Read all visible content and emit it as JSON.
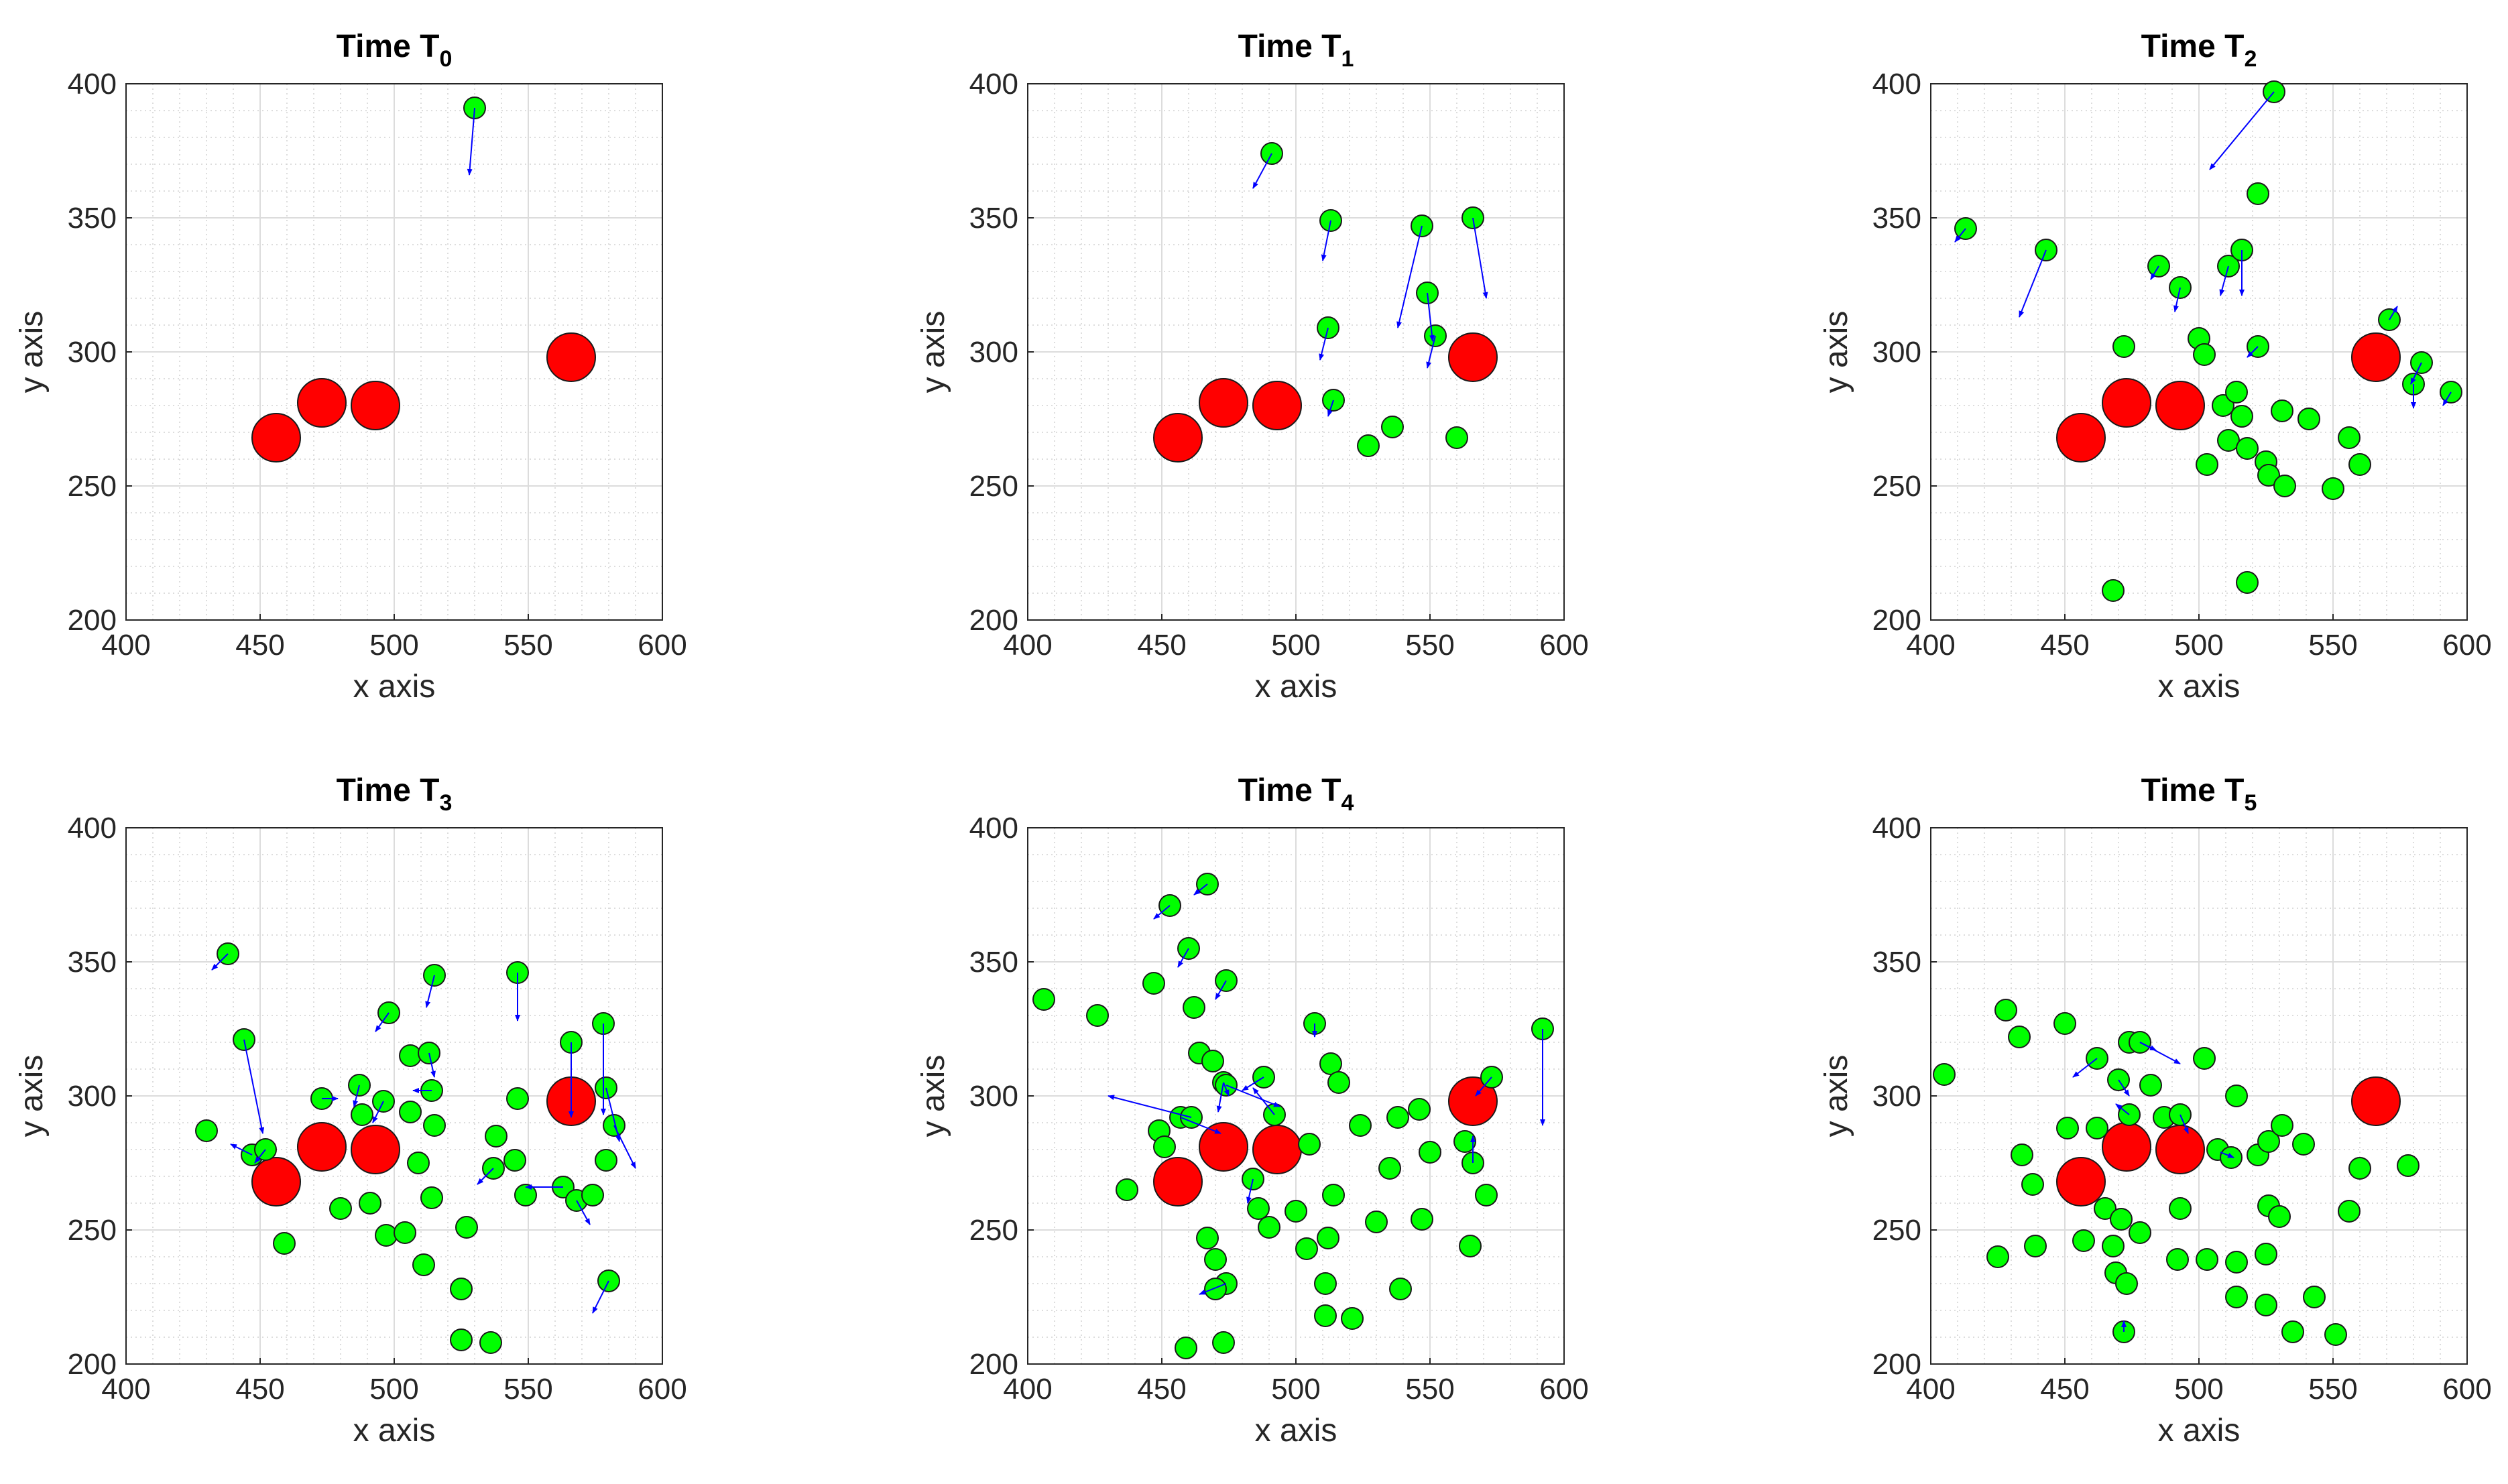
{
  "chart_data": [
    {
      "type": "scatter",
      "title": "Time T",
      "subscript": "0",
      "xlabel": "x axis",
      "ylabel": "y axis",
      "xlim": [
        400,
        600
      ],
      "ylim": [
        200,
        400
      ],
      "xticks": [
        400,
        450,
        500,
        550,
        600
      ],
      "yticks": [
        200,
        250,
        300,
        350,
        400
      ],
      "grid": true,
      "minor_grid": true,
      "big_points": [
        [
          456,
          268
        ],
        [
          473,
          281
        ],
        [
          493,
          280
        ],
        [
          566,
          298
        ]
      ],
      "small_points": [
        [
          530,
          391
        ]
      ],
      "arrows": [
        [
          530,
          391,
          -2,
          -25
        ]
      ]
    },
    {
      "type": "scatter",
      "title": "Time T",
      "subscript": "1",
      "xlabel": "x axis",
      "ylabel": "y axis",
      "xlim": [
        400,
        600
      ],
      "ylim": [
        200,
        400
      ],
      "xticks": [
        400,
        450,
        500,
        550,
        600
      ],
      "yticks": [
        200,
        250,
        300,
        350,
        400
      ],
      "grid": true,
      "minor_grid": true,
      "big_points": [
        [
          456,
          268
        ],
        [
          473,
          281
        ],
        [
          493,
          280
        ],
        [
          566,
          298
        ]
      ],
      "small_points": [
        [
          491,
          374
        ],
        [
          513,
          349
        ],
        [
          547,
          347
        ],
        [
          566,
          350
        ],
        [
          512,
          309
        ],
        [
          549,
          322
        ],
        [
          552,
          306
        ],
        [
          514,
          282
        ],
        [
          536,
          272
        ],
        [
          527,
          265
        ],
        [
          560,
          268
        ]
      ],
      "arrows": [
        [
          491,
          374,
          -7,
          -13
        ],
        [
          513,
          349,
          -3,
          -15
        ],
        [
          547,
          347,
          -9,
          -38
        ],
        [
          566,
          350,
          5,
          -30
        ],
        [
          512,
          309,
          -3,
          -12
        ],
        [
          549,
          322,
          2,
          -18
        ],
        [
          552,
          306,
          -3,
          -12
        ],
        [
          514,
          282,
          -2,
          -6
        ]
      ]
    },
    {
      "type": "scatter",
      "title": "Time T",
      "subscript": "2",
      "xlabel": "x axis",
      "ylabel": "y axis",
      "xlim": [
        400,
        600
      ],
      "ylim": [
        200,
        400
      ],
      "xticks": [
        400,
        450,
        500,
        550,
        600
      ],
      "yticks": [
        200,
        250,
        300,
        350,
        400
      ],
      "grid": true,
      "minor_grid": true,
      "big_points": [
        [
          456,
          268
        ],
        [
          473,
          281
        ],
        [
          493,
          280
        ],
        [
          566,
          298
        ]
      ],
      "small_points": [
        [
          528,
          397
        ],
        [
          413,
          346
        ],
        [
          443,
          338
        ],
        [
          522,
          359
        ],
        [
          485,
          332
        ],
        [
          493,
          324
        ],
        [
          511,
          332
        ],
        [
          516,
          338
        ],
        [
          472,
          302
        ],
        [
          500,
          305
        ],
        [
          502,
          299
        ],
        [
          522,
          302
        ],
        [
          571,
          312
        ],
        [
          583,
          296
        ],
        [
          594,
          285
        ],
        [
          580,
          288
        ],
        [
          509,
          280
        ],
        [
          514,
          285
        ],
        [
          516,
          276
        ],
        [
          531,
          278
        ],
        [
          541,
          275
        ],
        [
          511,
          267
        ],
        [
          518,
          264
        ],
        [
          503,
          258
        ],
        [
          525,
          259
        ],
        [
          556,
          268
        ],
        [
          560,
          258
        ],
        [
          526,
          254
        ],
        [
          532,
          250
        ],
        [
          550,
          249
        ],
        [
          518,
          214
        ],
        [
          468,
          211
        ]
      ],
      "arrows": [
        [
          528,
          397,
          -24,
          -29
        ],
        [
          413,
          346,
          -4,
          -5
        ],
        [
          443,
          338,
          -10,
          -25
        ],
        [
          485,
          332,
          -3,
          -5
        ],
        [
          493,
          324,
          -2,
          -9
        ],
        [
          511,
          332,
          -3,
          -11
        ],
        [
          516,
          338,
          0,
          -17
        ],
        [
          522,
          302,
          -4,
          -4
        ],
        [
          571,
          312,
          3,
          5
        ],
        [
          583,
          296,
          -4,
          -8
        ],
        [
          594,
          285,
          -3,
          -5
        ],
        [
          580,
          288,
          0,
          -9
        ]
      ]
    },
    {
      "type": "scatter",
      "title": "Time T",
      "subscript": "3",
      "xlabel": "x axis",
      "ylabel": "y axis",
      "xlim": [
        400,
        600
      ],
      "ylim": [
        200,
        400
      ],
      "xticks": [
        400,
        450,
        500,
        550,
        600
      ],
      "yticks": [
        200,
        250,
        300,
        350,
        400
      ],
      "grid": true,
      "minor_grid": true,
      "big_points": [
        [
          456,
          268
        ],
        [
          473,
          281
        ],
        [
          493,
          280
        ],
        [
          566,
          298
        ]
      ],
      "small_points": [
        [
          438,
          353
        ],
        [
          444,
          321
        ],
        [
          430,
          287
        ],
        [
          447,
          278
        ],
        [
          452,
          280
        ],
        [
          459,
          245
        ],
        [
          473,
          299
        ],
        [
          487,
          304
        ],
        [
          488,
          293
        ],
        [
          480,
          258
        ],
        [
          491,
          260
        ],
        [
          497,
          248
        ],
        [
          496,
          298
        ],
        [
          498,
          331
        ],
        [
          506,
          315
        ],
        [
          513,
          316
        ],
        [
          515,
          345
        ],
        [
          514,
          302
        ],
        [
          515,
          289
        ],
        [
          506,
          294
        ],
        [
          509,
          275
        ],
        [
          514,
          262
        ],
        [
          504,
          249
        ],
        [
          511,
          237
        ],
        [
          527,
          251
        ],
        [
          525,
          228
        ],
        [
          525,
          209
        ],
        [
          536,
          208
        ],
        [
          537,
          273
        ],
        [
          538,
          285
        ],
        [
          545,
          276
        ],
        [
          546,
          299
        ],
        [
          546,
          346
        ],
        [
          549,
          263
        ],
        [
          563,
          266
        ],
        [
          568,
          261
        ],
        [
          566,
          320
        ],
        [
          574,
          263
        ],
        [
          578,
          327
        ],
        [
          579,
          303
        ],
        [
          579,
          276
        ],
        [
          582,
          289
        ],
        [
          580,
          231
        ]
      ],
      "arrows": [
        [
          438,
          353,
          -6,
          -6
        ],
        [
          444,
          321,
          7,
          -35
        ],
        [
          447,
          278,
          -8,
          4
        ],
        [
          452,
          280,
          -4,
          -5
        ],
        [
          473,
          299,
          6,
          0
        ],
        [
          487,
          304,
          -2,
          -8
        ],
        [
          496,
          298,
          -4,
          -8
        ],
        [
          498,
          331,
          -5,
          -7
        ],
        [
          513,
          316,
          2,
          -9
        ],
        [
          515,
          345,
          -3,
          -12
        ],
        [
          514,
          302,
          -7,
          0
        ],
        [
          537,
          273,
          -6,
          -6
        ],
        [
          546,
          346,
          0,
          -18
        ],
        [
          563,
          266,
          -14,
          0
        ],
        [
          568,
          261,
          5,
          -9
        ],
        [
          566,
          320,
          0,
          -28
        ],
        [
          578,
          327,
          0,
          -34
        ],
        [
          579,
          303,
          5,
          -20
        ],
        [
          582,
          289,
          8,
          -16
        ],
        [
          580,
          231,
          -6,
          -12
        ]
      ]
    },
    {
      "type": "scatter",
      "title": "Time T",
      "subscript": "4",
      "xlabel": "x axis",
      "ylabel": "y axis",
      "xlim": [
        400,
        600
      ],
      "ylim": [
        200,
        400
      ],
      "xticks": [
        400,
        450,
        500,
        550,
        600
      ],
      "yticks": [
        200,
        250,
        300,
        350,
        400
      ],
      "grid": true,
      "minor_grid": true,
      "big_points": [
        [
          456,
          268
        ],
        [
          473,
          281
        ],
        [
          493,
          280
        ],
        [
          566,
          298
        ]
      ],
      "small_points": [
        [
          406,
          336
        ],
        [
          426,
          330
        ],
        [
          437,
          265
        ],
        [
          447,
          342
        ],
        [
          453,
          371
        ],
        [
          467,
          379
        ],
        [
          460,
          355
        ],
        [
          462,
          333
        ],
        [
          464,
          316
        ],
        [
          469,
          313
        ],
        [
          473,
          305
        ],
        [
          474,
          343
        ],
        [
          474,
          304
        ],
        [
          449,
          287
        ],
        [
          451,
          281
        ],
        [
          457,
          292
        ],
        [
          461,
          292
        ],
        [
          467,
          247
        ],
        [
          470,
          239
        ],
        [
          474,
          230
        ],
        [
          470,
          228
        ],
        [
          473,
          208
        ],
        [
          459,
          206
        ],
        [
          484,
          269
        ],
        [
          488,
          307
        ],
        [
          492,
          293
        ],
        [
          486,
          258
        ],
        [
          490,
          251
        ],
        [
          500,
          257
        ],
        [
          505,
          282
        ],
        [
          504,
          243
        ],
        [
          507,
          327
        ],
        [
          513,
          312
        ],
        [
          516,
          305
        ],
        [
          514,
          263
        ],
        [
          512,
          247
        ],
        [
          511,
          230
        ],
        [
          511,
          218
        ],
        [
          521,
          217
        ],
        [
          524,
          289
        ],
        [
          530,
          253
        ],
        [
          535,
          273
        ],
        [
          538,
          292
        ],
        [
          539,
          228
        ],
        [
          546,
          295
        ],
        [
          547,
          254
        ],
        [
          550,
          279
        ],
        [
          563,
          283
        ],
        [
          566,
          275
        ],
        [
          571,
          263
        ],
        [
          573,
          307
        ],
        [
          592,
          325
        ],
        [
          565,
          244
        ]
      ],
      "arrows": [
        [
          453,
          371,
          -6,
          -5
        ],
        [
          467,
          379,
          -5,
          -4
        ],
        [
          460,
          355,
          -4,
          -7
        ],
        [
          474,
          343,
          -4,
          -7
        ],
        [
          461,
          292,
          -31,
          8
        ],
        [
          457,
          292,
          15,
          -6
        ],
        [
          473,
          305,
          2,
          -5
        ],
        [
          473,
          305,
          -2,
          -11
        ],
        [
          474,
          304,
          20,
          -8
        ],
        [
          488,
          307,
          -8,
          -5
        ],
        [
          492,
          293,
          -8,
          10
        ],
        [
          474,
          230,
          -10,
          -4
        ],
        [
          507,
          327,
          0,
          -5
        ],
        [
          592,
          325,
          0,
          -36
        ],
        [
          573,
          307,
          -6,
          -7
        ],
        [
          566,
          275,
          0,
          10
        ],
        [
          484,
          269,
          -2,
          -9
        ]
      ]
    },
    {
      "type": "scatter",
      "title": "Time T",
      "subscript": "5",
      "xlabel": "x axis",
      "ylabel": "y axis",
      "xlim": [
        400,
        600
      ],
      "ylim": [
        200,
        400
      ],
      "xticks": [
        400,
        450,
        500,
        550,
        600
      ],
      "yticks": [
        200,
        250,
        300,
        350,
        400
      ],
      "grid": true,
      "minor_grid": true,
      "big_points": [
        [
          456,
          268
        ],
        [
          473,
          281
        ],
        [
          493,
          280
        ],
        [
          566,
          298
        ]
      ],
      "small_points": [
        [
          405,
          308
        ],
        [
          425,
          240
        ],
        [
          428,
          332
        ],
        [
          433,
          322
        ],
        [
          434,
          278
        ],
        [
          438,
          267
        ],
        [
          439,
          244
        ],
        [
          450,
          327
        ],
        [
          451,
          288
        ],
        [
          457,
          246
        ],
        [
          462,
          314
        ],
        [
          462,
          288
        ],
        [
          465,
          258
        ],
        [
          468,
          244
        ],
        [
          469,
          234
        ],
        [
          470,
          306
        ],
        [
          471,
          254
        ],
        [
          472,
          212
        ],
        [
          473,
          230
        ],
        [
          474,
          293
        ],
        [
          474,
          320
        ],
        [
          478,
          320
        ],
        [
          478,
          249
        ],
        [
          482,
          304
        ],
        [
          487,
          292
        ],
        [
          492,
          239
        ],
        [
          493,
          293
        ],
        [
          493,
          258
        ],
        [
          502,
          314
        ],
        [
          503,
          239
        ],
        [
          507,
          280
        ],
        [
          512,
          277
        ],
        [
          514,
          238
        ],
        [
          514,
          225
        ],
        [
          514,
          300
        ],
        [
          522,
          278
        ],
        [
          525,
          222
        ],
        [
          525,
          241
        ],
        [
          526,
          283
        ],
        [
          526,
          259
        ],
        [
          530,
          255
        ],
        [
          531,
          289
        ],
        [
          535,
          212
        ],
        [
          539,
          282
        ],
        [
          543,
          225
        ],
        [
          551,
          211
        ],
        [
          556,
          257
        ],
        [
          560,
          273
        ],
        [
          578,
          274
        ]
      ],
      "arrows": [
        [
          462,
          314,
          -9,
          -7
        ],
        [
          478,
          320,
          6,
          -3
        ],
        [
          478,
          320,
          15,
          -8
        ],
        [
          470,
          306,
          4,
          -6
        ],
        [
          493,
          293,
          3,
          -7
        ],
        [
          474,
          293,
          -5,
          4
        ],
        [
          508,
          279,
          5,
          -2
        ],
        [
          472,
          212,
          0,
          4
        ]
      ]
    }
  ]
}
